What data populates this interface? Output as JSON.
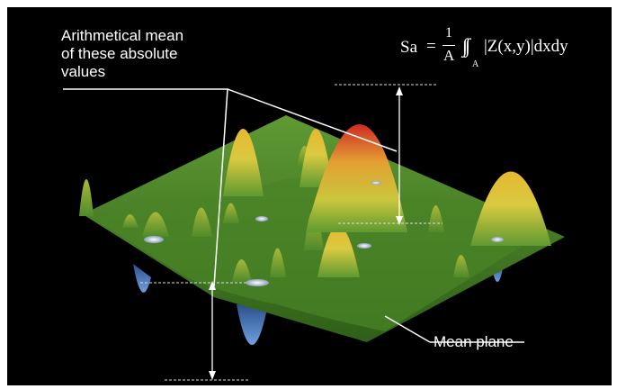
{
  "caption": {
    "line1": "Arithmetical mean",
    "line2": "of these absolute",
    "line3": "values"
  },
  "formula": {
    "lhs": "Sa",
    "equals": "=",
    "numerator": "1",
    "denominator": "A",
    "integral": "∫∫",
    "subscript": "A",
    "integrand": "|Z(x,y)|dxdy"
  },
  "mean_plane_label": "Mean plane",
  "colors": {
    "background": "#000000",
    "surface_green": "#4f8a2a",
    "peak_yellow": "#e8c83a",
    "peak_red": "#d8322a",
    "valley_blue": "#3d72c8",
    "annotation_white": "#ffffff"
  }
}
